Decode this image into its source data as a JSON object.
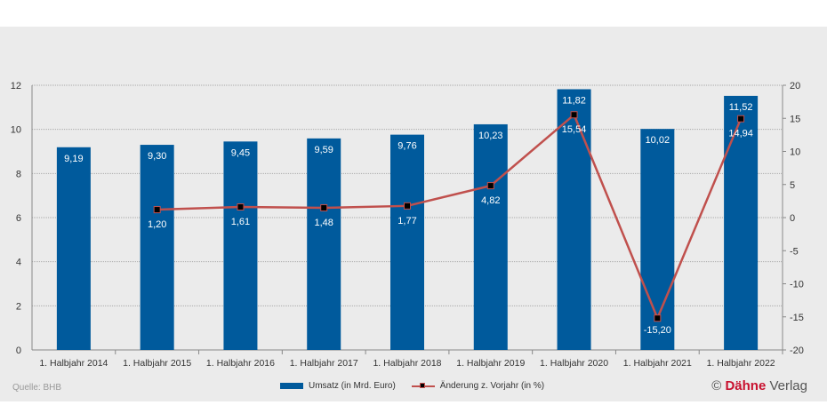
{
  "chart_data": {
    "type": "bar+line",
    "categories": [
      "1. Halbjahr 2014",
      "1. Halbjahr 2015",
      "1. Halbjahr 2016",
      "1. Halbjahr 2017",
      "1. Halbjahr 2018",
      "1. Halbjahr 2019",
      "1. Halbjahr 2020",
      "1. Halbjahr 2021",
      "1. Halbjahr 2022"
    ],
    "series": [
      {
        "name": "Umsatz (in Mrd. Euro)",
        "type": "bar",
        "axis": "left",
        "color": "#005a9c",
        "values": [
          9.19,
          9.3,
          9.45,
          9.59,
          9.76,
          10.23,
          11.82,
          10.02,
          11.52
        ],
        "labels": [
          "9,19",
          "9,30",
          "9,45",
          "9,59",
          "9,76",
          "10,23",
          "11,82",
          "10,02",
          "11,52"
        ]
      },
      {
        "name": "Änderung z. Vorjahr (in %)",
        "type": "line",
        "axis": "right",
        "color": "#c0504d",
        "values": [
          null,
          1.2,
          1.61,
          1.48,
          1.77,
          4.82,
          15.54,
          -15.2,
          14.94
        ],
        "labels": [
          "",
          "1,20",
          "1,61",
          "1,48",
          "1,77",
          "4,82",
          "15,54",
          "-15,20",
          "14,94"
        ]
      }
    ],
    "left_axis": {
      "ylim": [
        0,
        12
      ],
      "ticks": [
        "0",
        "2",
        "4",
        "6",
        "8",
        "10",
        "12"
      ]
    },
    "right_axis": {
      "ylim": [
        -20,
        20
      ],
      "ticks": [
        "-20",
        "-15",
        "-10",
        "-5",
        "0",
        "5",
        "10",
        "15",
        "20"
      ]
    },
    "grid": true,
    "legend": "bottom"
  },
  "footer": {
    "source": "Quelle: BHB",
    "copyright": "©",
    "brand_bold": "Dähne",
    "brand_light": " Verlag"
  }
}
